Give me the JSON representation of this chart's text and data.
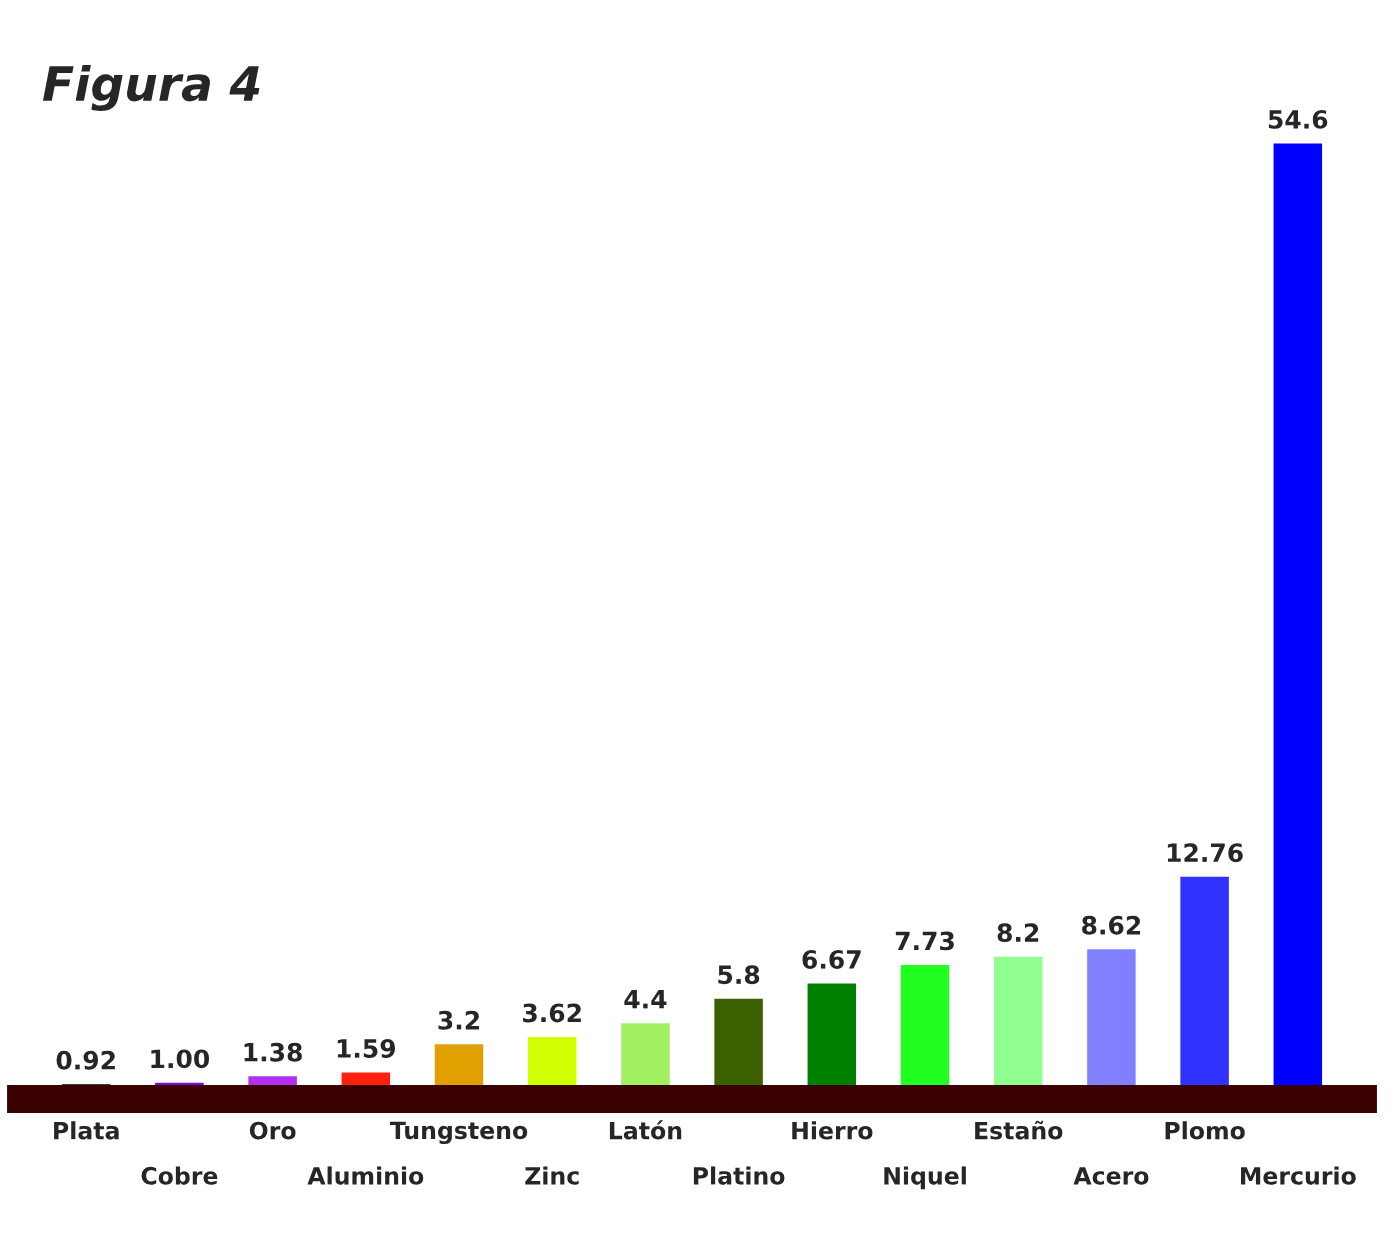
{
  "chart_data": {
    "type": "bar",
    "title": "Figura 4",
    "categories": [
      "Plata",
      "Cobre",
      "Oro",
      "Aluminio",
      "Tungsteno",
      "Zinc",
      "Latón",
      "Platino",
      "Hierro",
      "Niquel",
      "Estaño",
      "Acero",
      "Plomo",
      "Mercurio"
    ],
    "values": [
      0.92,
      1.0,
      1.38,
      1.59,
      3.2,
      3.62,
      4.4,
      5.8,
      6.67,
      7.73,
      8.2,
      8.62,
      12.76,
      54.6
    ],
    "colors": [
      "#000000",
      "#8000e0",
      "#b030f0",
      "#ff2010",
      "#e0a000",
      "#d0ff00",
      "#a0f060",
      "#3a6000",
      "#008000",
      "#20ff20",
      "#90ff90",
      "#8080ff",
      "#3030ff",
      "#0000ff"
    ],
    "value_labels": [
      "0.92",
      "1.00",
      "1.38",
      "1.59",
      "3.2",
      "3.62",
      "4.4",
      "5.8",
      "6.67",
      "7.73",
      "8.2",
      "8.62",
      "12.76",
      "54.6"
    ],
    "grid": false,
    "legend": false
  }
}
